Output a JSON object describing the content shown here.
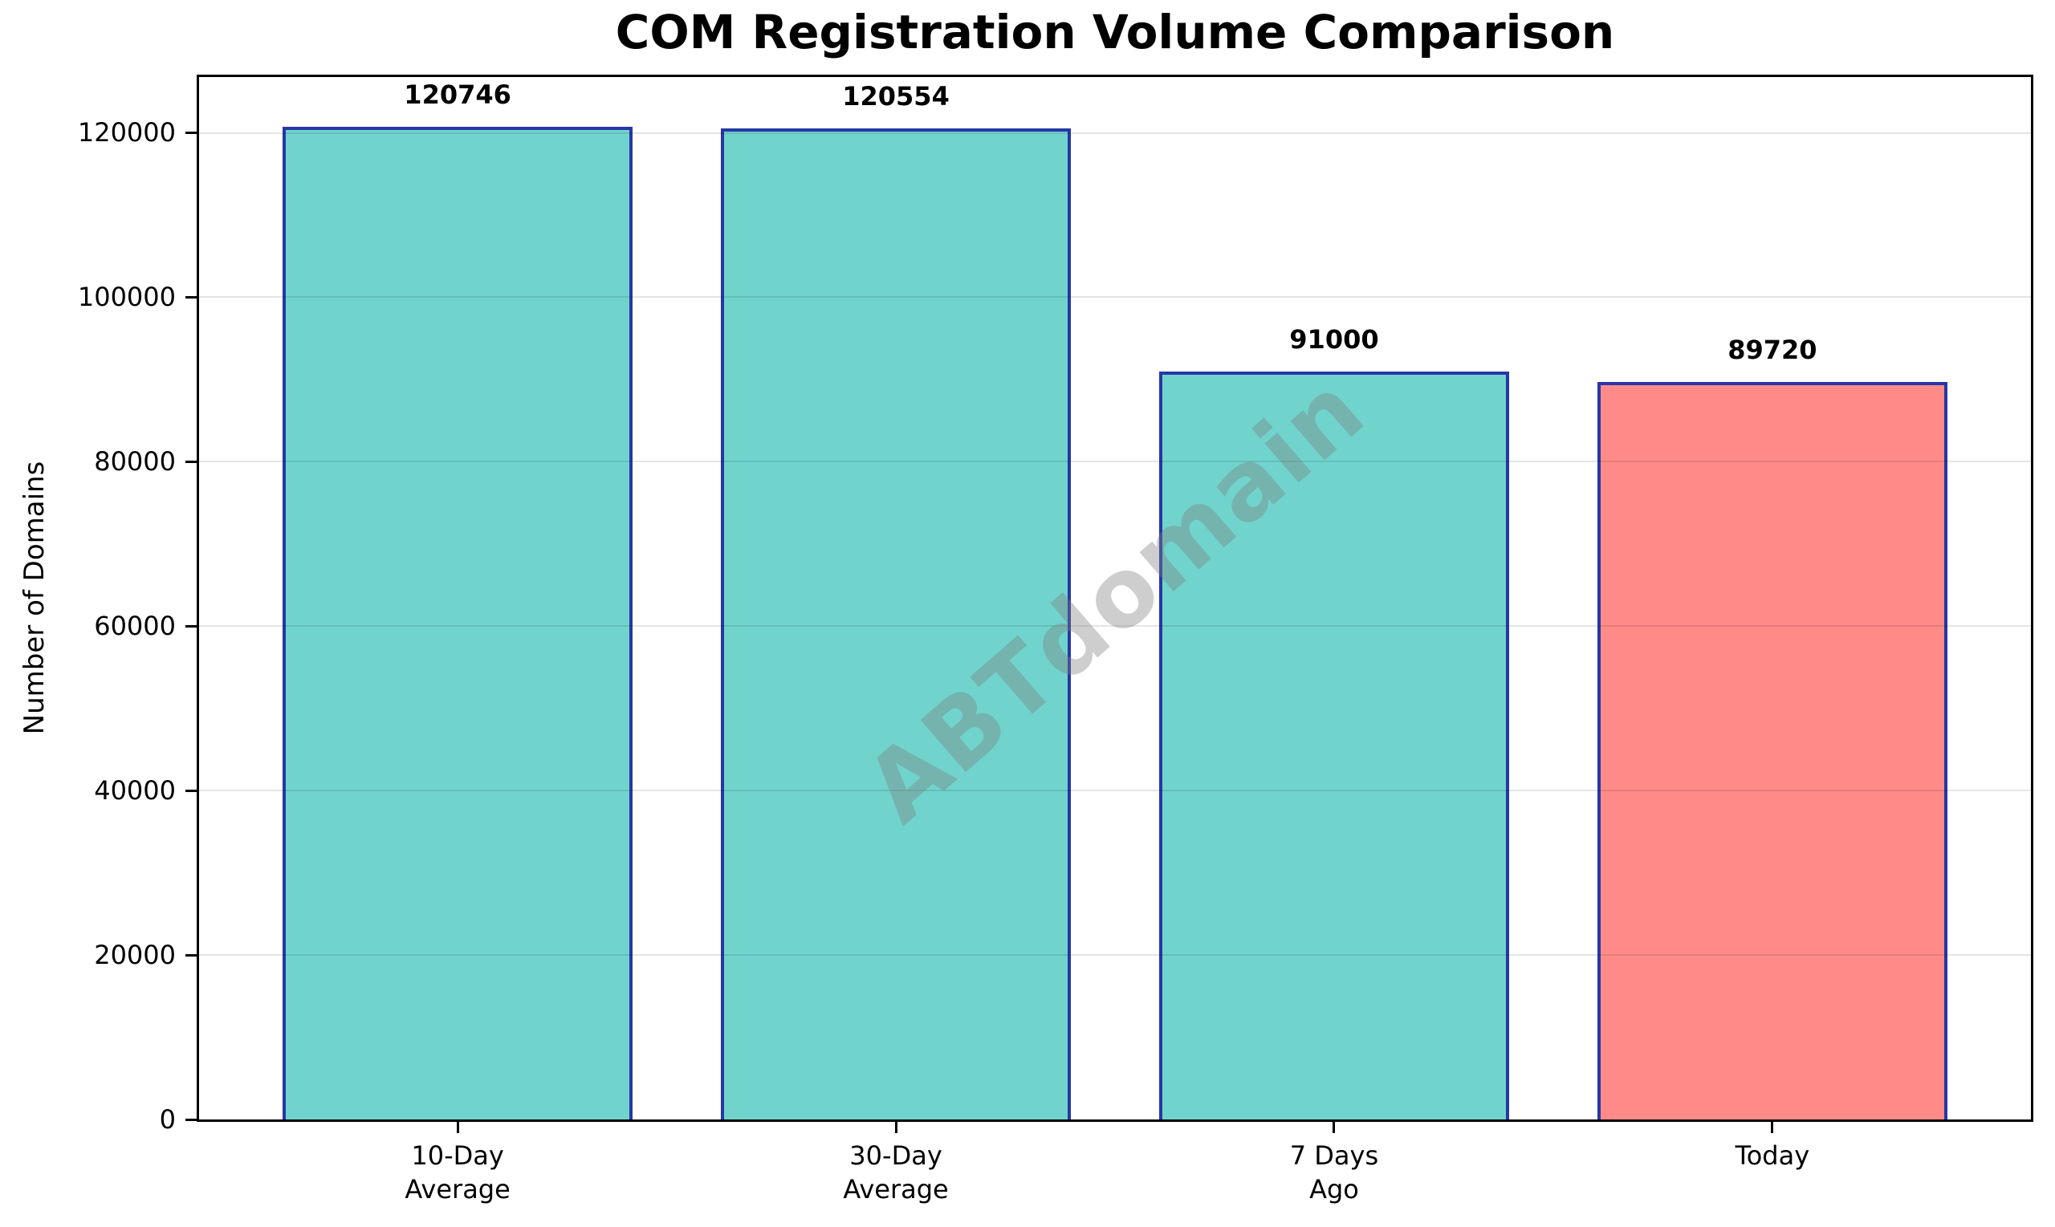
{
  "chart_data": {
    "type": "bar",
    "title": "COM Registration Volume Comparison",
    "ylabel": "Number of Domains",
    "xlabel": "",
    "categories": [
      "10-Day\nAverage",
      "30-Day\nAverage",
      "7 Days\nAgo",
      "Today"
    ],
    "values": [
      120746,
      120554,
      91000,
      89720
    ],
    "value_labels": [
      "120746",
      "120554",
      "91000",
      "89720"
    ],
    "bar_colors": [
      "#70d4cd",
      "#70d4cd",
      "#70d4cd",
      "#ff8b88"
    ],
    "bar_edge_color": "#2637a6",
    "bar_width_fraction": 0.8,
    "ylim": [
      0,
      126783
    ],
    "yticks": [
      0,
      20000,
      40000,
      60000,
      80000,
      100000,
      120000
    ],
    "grid": true,
    "gridline_color": "rgba(0,0,0,0.10)",
    "legend": false,
    "watermark": {
      "text": "ABTdomain",
      "rotation_deg": -41,
      "color": "#7f7f7f",
      "opacity": 0.38
    }
  }
}
